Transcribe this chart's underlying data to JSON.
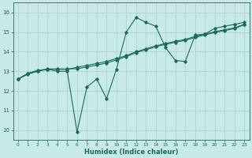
{
  "xlabel": "Humidex (Indice chaleur)",
  "bg_color": "#c8eae6",
  "grid_color": "#aed4cf",
  "line_color": "#1a6b5e",
  "xlim": [
    -0.5,
    23.5
  ],
  "ylim": [
    9.5,
    16.5
  ],
  "xticks": [
    0,
    1,
    2,
    3,
    4,
    5,
    6,
    7,
    8,
    9,
    10,
    11,
    12,
    13,
    14,
    15,
    16,
    17,
    18,
    19,
    20,
    21,
    22,
    23
  ],
  "yticks": [
    10,
    11,
    12,
    13,
    14,
    15,
    16
  ],
  "series1_x": [
    0,
    1,
    2,
    3,
    4,
    5,
    6,
    7,
    8,
    9,
    10,
    11,
    12,
    13,
    14,
    15,
    16,
    17,
    18,
    19,
    20,
    21,
    22,
    23
  ],
  "series1_y": [
    12.6,
    12.9,
    13.05,
    13.1,
    13.0,
    13.0,
    9.9,
    12.2,
    12.6,
    11.6,
    13.1,
    15.0,
    15.75,
    15.5,
    15.3,
    14.2,
    13.55,
    13.5,
    14.85,
    14.9,
    15.2,
    15.3,
    15.4,
    15.5
  ],
  "series2_x": [
    0,
    1,
    2,
    3,
    4,
    5,
    6,
    7,
    8,
    9,
    10,
    11,
    12,
    13,
    14,
    15,
    16,
    17,
    18,
    19,
    20,
    21,
    22,
    23
  ],
  "series2_y": [
    12.6,
    12.85,
    13.0,
    13.1,
    13.1,
    13.1,
    13.2,
    13.3,
    13.4,
    13.5,
    13.65,
    13.8,
    14.0,
    14.15,
    14.3,
    14.42,
    14.53,
    14.63,
    14.78,
    14.9,
    15.02,
    15.12,
    15.22,
    15.4
  ],
  "series3_x": [
    0,
    1,
    2,
    3,
    4,
    5,
    6,
    7,
    8,
    9,
    10,
    11,
    12,
    13,
    14,
    15,
    16,
    17,
    18,
    19,
    20,
    21,
    22,
    23
  ],
  "series3_y": [
    12.6,
    12.88,
    13.02,
    13.12,
    13.12,
    13.12,
    13.13,
    13.22,
    13.32,
    13.42,
    13.58,
    13.75,
    13.95,
    14.1,
    14.25,
    14.38,
    14.48,
    14.58,
    14.73,
    14.86,
    14.98,
    15.08,
    15.18,
    15.38
  ]
}
